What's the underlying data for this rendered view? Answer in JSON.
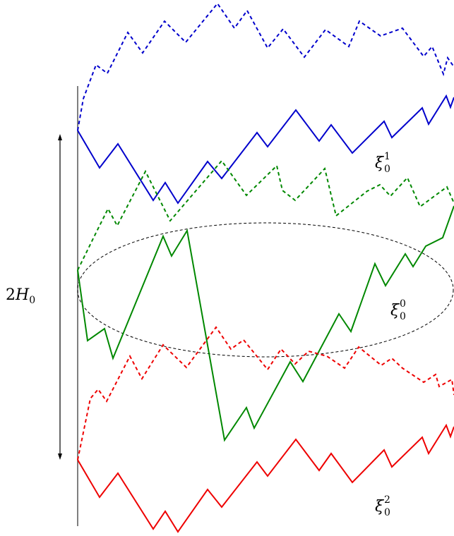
{
  "labels": {
    "height": {
      "prefix": "2",
      "var": "H",
      "sub": "0"
    },
    "xi_top": {
      "var": "ξ",
      "sub": "0",
      "sup": "1"
    },
    "xi_mid": {
      "var": "ξ",
      "sub": "0",
      "sup": "0"
    },
    "xi_bottom": {
      "var": "ξ",
      "sub": "0",
      "sup": "2"
    }
  },
  "colors": {
    "blue": "#0000cc",
    "green": "#008800",
    "red": "#ee0000",
    "axis": "#555555",
    "ellipse": "#000000",
    "arrow": "#000000"
  },
  "paths": [
    {
      "name": "blue-solid-path",
      "color": "blue",
      "dashed": false
    },
    {
      "name": "blue-dashed-path",
      "color": "blue",
      "dashed": true
    },
    {
      "name": "green-solid-path",
      "color": "green",
      "dashed": false
    },
    {
      "name": "green-dashed-path",
      "color": "green",
      "dashed": true
    },
    {
      "name": "red-solid-path",
      "color": "red",
      "dashed": false
    },
    {
      "name": "red-dashed-path",
      "color": "red",
      "dashed": true
    }
  ]
}
